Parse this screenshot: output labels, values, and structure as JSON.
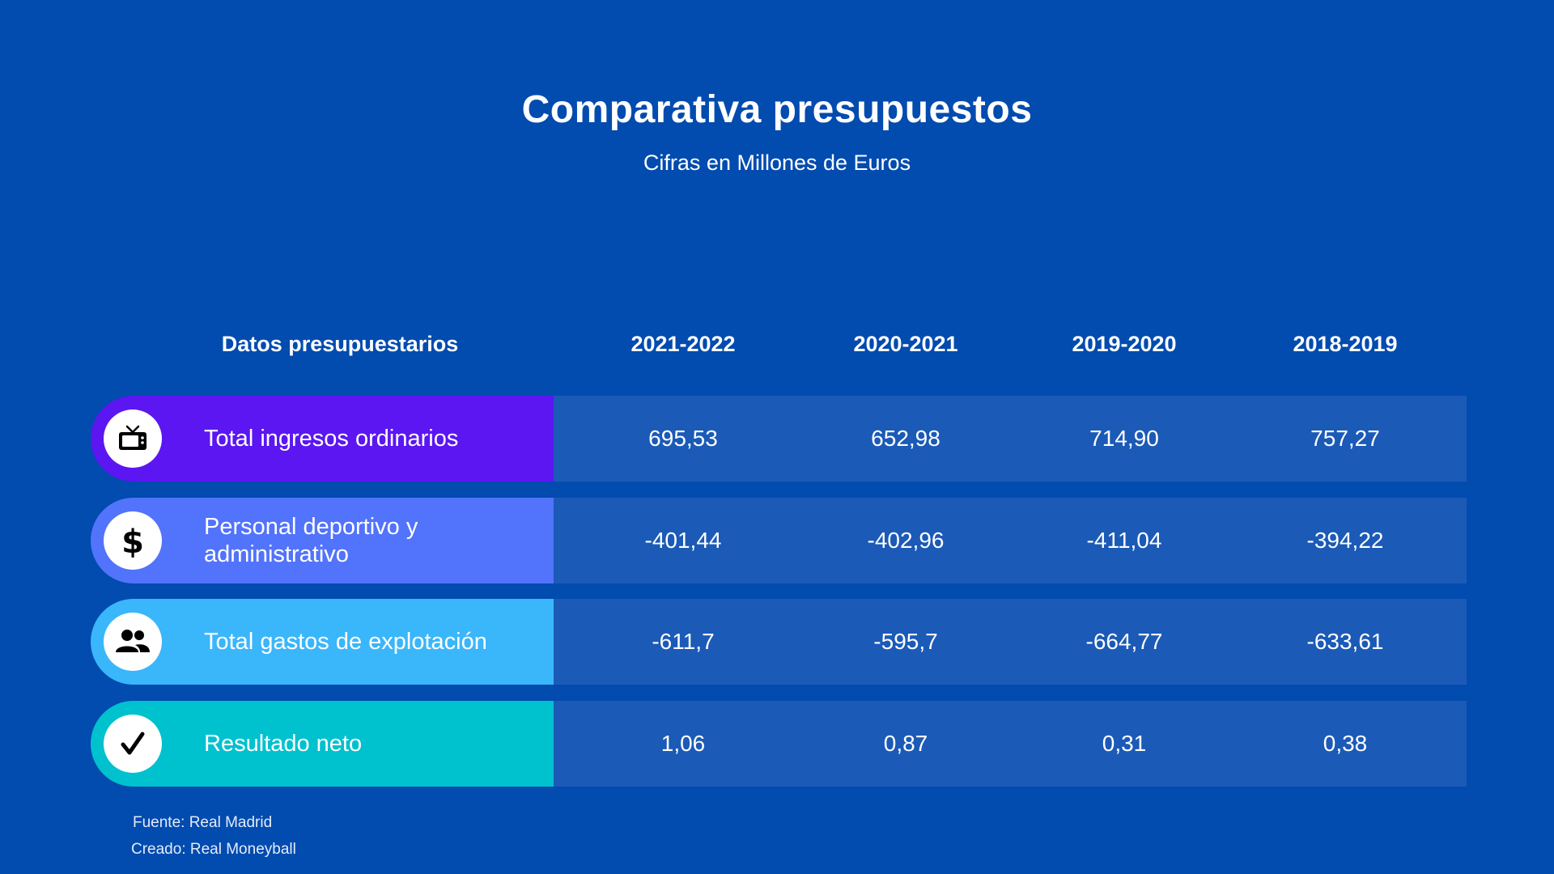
{
  "title": "Comparativa presupuestos",
  "subtitle": "Cifras en Millones de Euros",
  "colors": {
    "background": "#024BAF",
    "value_cell": "#1B5AB7",
    "row_ingresos": "#5B16F2",
    "row_personal": "#5273FB",
    "row_gastos": "#3AB6FB",
    "row_resultado": "#00C1CE"
  },
  "chart_data": {
    "type": "table",
    "title": "Comparativa presupuestos",
    "subtitle": "Cifras en Millones de Euros",
    "row_header": "Datos presupuestarios",
    "columns": [
      "2021-2022",
      "2020-2021",
      "2019-2020",
      "2018-2019"
    ],
    "rows": [
      {
        "label": "Total ingresos ordinarios",
        "icon": "tv-icon",
        "values": [
          "695,53",
          "652,98",
          "714,90",
          "757,27"
        ]
      },
      {
        "label": "Personal deportivo y administrativo",
        "icon": "dollar-icon",
        "values": [
          "-401,44",
          "-402,96",
          "-411,04",
          "-394,22"
        ]
      },
      {
        "label": "Total gastos de explotación",
        "icon": "people-icon",
        "values": [
          "-611,7",
          "-595,7",
          "-664,77",
          "-633,61"
        ]
      },
      {
        "label": "Resultado neto",
        "icon": "checkmark-icon",
        "values": [
          "1,06",
          "0,87",
          "0,31",
          "0,38"
        ]
      }
    ]
  },
  "footer": {
    "source": "Fuente: Real Madrid",
    "created": "Creado: Real Moneyball"
  }
}
